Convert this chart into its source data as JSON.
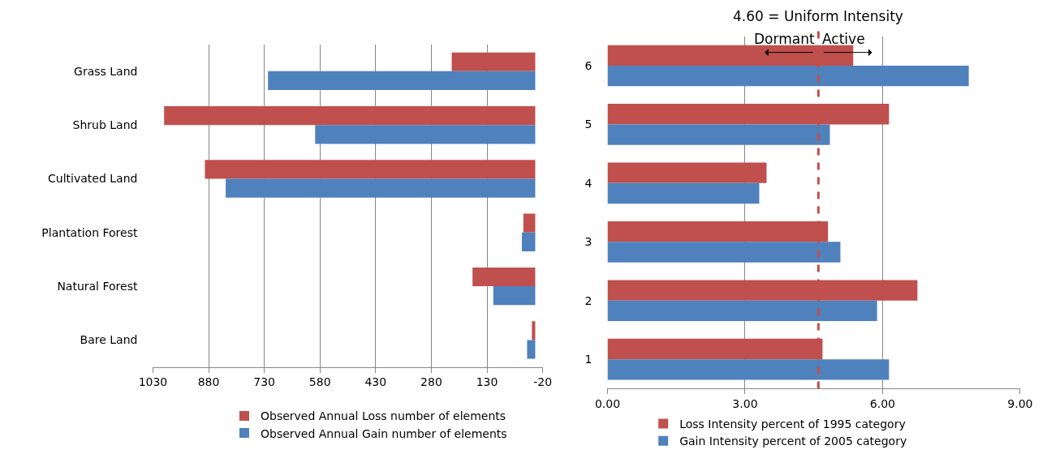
{
  "chart_data": [
    {
      "type": "bar",
      "orientation": "horizontal",
      "categories": [
        "Grass Land",
        "Shrub Land",
        "Cultivated Land",
        "Plantation Forest",
        "Natural Forest",
        "Bare Land"
      ],
      "series": [
        {
          "name": "Observed Annual Loss number of elements",
          "color": "#c0504d",
          "values": [
            225,
            1000,
            890,
            32,
            169,
            9
          ]
        },
        {
          "name": "Observed Annual Gain number of elements",
          "color": "#4f81bd",
          "values": [
            720,
            593,
            834,
            36,
            113,
            22
          ]
        }
      ],
      "xlim": [
        1030,
        -20
      ],
      "xticks": [
        1030,
        880,
        730,
        580,
        430,
        280,
        130,
        -20
      ],
      "grid": "x",
      "legend": "bottom"
    },
    {
      "type": "bar",
      "orientation": "horizontal",
      "categories": [
        "6",
        "5",
        "4",
        "3",
        "2",
        "1"
      ],
      "series": [
        {
          "name": "Loss Intensity percent of 1995 category",
          "color": "#c0504d",
          "values": [
            5.36,
            6.14,
            3.47,
            4.81,
            6.76,
            4.69
          ]
        },
        {
          "name": "Gain Intensity percent of 2005 category",
          "color": "#4f81bd",
          "values": [
            7.88,
            4.85,
            3.31,
            5.08,
            5.88,
            6.14
          ]
        }
      ],
      "xlim": [
        0,
        9
      ],
      "xticks": [
        {
          "value": 0,
          "label": "0.00"
        },
        {
          "value": 3,
          "label": "3.00"
        },
        {
          "value": 6,
          "label": "6.00"
        },
        {
          "value": 9,
          "label": "9.00"
        }
      ],
      "grid": "x",
      "legend": "bottom",
      "ref_lines": [
        {
          "axis": "x",
          "value": 4.6,
          "label": "4.60 = Uniform Intensity",
          "color": "#c0504d",
          "line_style": "dashed"
        }
      ],
      "annotations": [
        "Dormant",
        "Active"
      ]
    }
  ]
}
